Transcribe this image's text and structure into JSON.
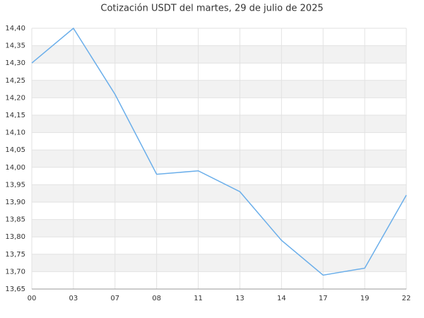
{
  "chart_data": {
    "type": "line",
    "title": "Cotización USDT del martes, 29 de julio de 2025",
    "categories": [
      "00",
      "03",
      "07",
      "08",
      "11",
      "13",
      "14",
      "17",
      "19",
      "22"
    ],
    "series": [
      {
        "name": "USDT",
        "color": "#6aaeea",
        "values": [
          14.3,
          14.4,
          14.21,
          13.98,
          13.99,
          13.93,
          13.79,
          13.69,
          13.71,
          13.92
        ]
      }
    ],
    "ylim": [
      13.65,
      14.4
    ],
    "yticks": [
      {
        "value": 13.65,
        "label": "13,65"
      },
      {
        "value": 13.7,
        "label": "13,70"
      },
      {
        "value": 13.75,
        "label": "13,75"
      },
      {
        "value": 13.8,
        "label": "13,80"
      },
      {
        "value": 13.85,
        "label": "13,85"
      },
      {
        "value": 13.9,
        "label": "13,90"
      },
      {
        "value": 13.95,
        "label": "13,95"
      },
      {
        "value": 14.0,
        "label": "14,00"
      },
      {
        "value": 14.05,
        "label": "14,05"
      },
      {
        "value": 14.1,
        "label": "14,10"
      },
      {
        "value": 14.15,
        "label": "14,15"
      },
      {
        "value": 14.2,
        "label": "14,20"
      },
      {
        "value": 14.25,
        "label": "14,25"
      },
      {
        "value": 14.3,
        "label": "14,30"
      },
      {
        "value": 14.35,
        "label": "14,35"
      },
      {
        "value": 14.4,
        "label": "14,40"
      }
    ],
    "grid": true
  }
}
